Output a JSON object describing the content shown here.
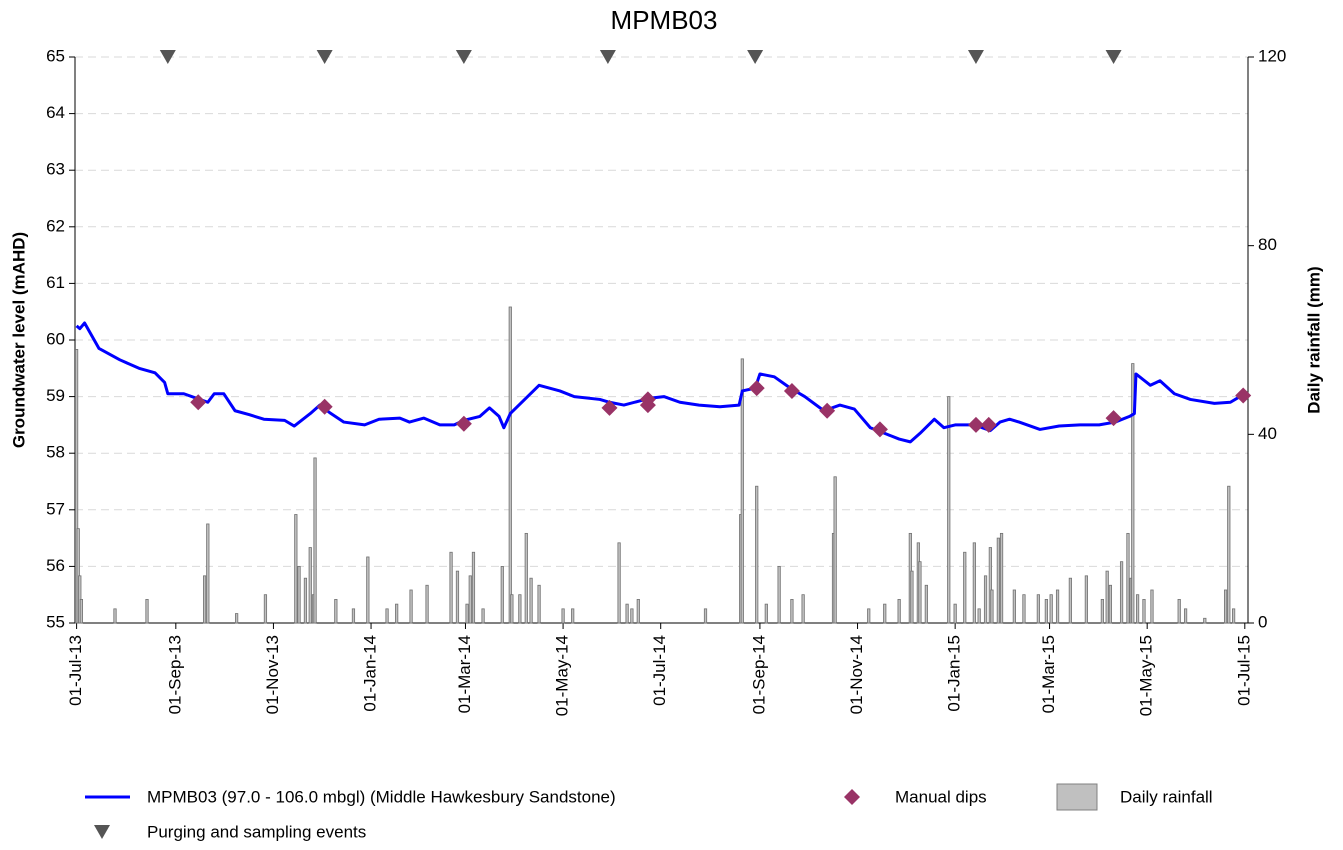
{
  "chart_data": {
    "type": "line",
    "title": "MPMB03",
    "ylabel": "Groundwater level (mAHD)",
    "y2label": "Daily rainfall (mm)",
    "xlim": [
      "2013-06-30",
      "2015-07-03"
    ],
    "xticks": [
      {
        "value": "2013-07-01",
        "label": "01-Jul-13"
      },
      {
        "value": "2013-09-01",
        "label": "01-Sep-13"
      },
      {
        "value": "2013-11-01",
        "label": "01-Nov-13"
      },
      {
        "value": "2014-01-01",
        "label": "01-Jan-14"
      },
      {
        "value": "2014-03-01",
        "label": "01-Mar-14"
      },
      {
        "value": "2014-05-01",
        "label": "01-May-14"
      },
      {
        "value": "2014-07-01",
        "label": "01-Jul-14"
      },
      {
        "value": "2014-09-01",
        "label": "01-Sep-14"
      },
      {
        "value": "2014-11-01",
        "label": "01-Nov-14"
      },
      {
        "value": "2015-01-01",
        "label": "01-Jan-15"
      },
      {
        "value": "2015-03-01",
        "label": "01-Mar-15"
      },
      {
        "value": "2015-05-01",
        "label": "01-May-15"
      },
      {
        "value": "2015-07-01",
        "label": "01-Jul-15"
      }
    ],
    "ylim": [
      55,
      65
    ],
    "yticks": [
      55,
      56,
      57,
      58,
      59,
      60,
      61,
      62,
      63,
      64,
      65
    ],
    "y2lim": [
      0,
      120
    ],
    "y2ticks": [
      0,
      40,
      80,
      120
    ],
    "grid": true,
    "legend": "bottom",
    "series": [
      {
        "name": "MPMB03 (97.0 - 106.0 mbgl) (Middle Hawkesbury Sandstone)",
        "type": "line",
        "color": "#0000ff",
        "x": [
          "2013-07-01",
          "2013-07-03",
          "2013-07-06",
          "2013-07-15",
          "2013-07-28",
          "2013-08-09",
          "2013-08-19",
          "2013-08-25",
          "2013-08-27",
          "2013-09-06",
          "2013-09-16",
          "2013-09-21",
          "2013-09-25",
          "2013-10-01",
          "2013-10-08",
          "2013-10-17",
          "2013-10-26",
          "2013-11-08",
          "2013-11-14",
          "2013-11-24",
          "2013-11-30",
          "2013-12-06",
          "2013-12-15",
          "2013-12-28",
          "2014-01-06",
          "2014-01-19",
          "2014-01-25",
          "2014-02-03",
          "2014-02-13",
          "2014-02-22",
          "2014-02-28",
          "2014-03-10",
          "2014-03-16",
          "2014-03-22",
          "2014-03-25",
          "2014-03-29",
          "2014-04-07",
          "2014-04-16",
          "2014-04-29",
          "2014-05-08",
          "2014-05-24",
          "2014-05-30",
          "2014-06-08",
          "2014-06-24",
          "2014-07-03",
          "2014-07-13",
          "2014-07-25",
          "2014-08-07",
          "2014-08-19",
          "2014-08-21",
          "2014-08-29",
          "2014-09-01",
          "2014-09-10",
          "2014-09-20",
          "2014-09-29",
          "2014-10-11",
          "2014-10-21",
          "2014-10-30",
          "2014-11-09",
          "2014-11-18",
          "2014-11-27",
          "2014-12-04",
          "2014-12-10",
          "2014-12-19",
          "2014-12-25",
          "2015-01-01",
          "2015-01-13",
          "2015-01-23",
          "2015-01-29",
          "2015-02-04",
          "2015-02-10",
          "2015-02-23",
          "2015-03-07",
          "2015-03-20",
          "2015-04-01",
          "2015-04-11",
          "2015-04-20",
          "2015-04-23",
          "2015-04-24",
          "2015-05-03",
          "2015-05-09",
          "2015-05-18",
          "2015-05-28",
          "2015-06-12",
          "2015-06-22",
          "2015-06-28",
          "2015-07-01"
        ],
        "values": [
          60.25,
          60.2,
          60.3,
          59.85,
          59.65,
          59.5,
          59.42,
          59.25,
          59.05,
          59.05,
          58.95,
          58.9,
          59.05,
          59.05,
          58.75,
          58.68,
          58.6,
          58.58,
          58.48,
          58.7,
          58.85,
          58.72,
          58.55,
          58.5,
          58.6,
          58.62,
          58.55,
          58.62,
          58.5,
          58.5,
          58.58,
          58.65,
          58.8,
          58.65,
          58.45,
          58.7,
          58.95,
          59.2,
          59.1,
          59.0,
          58.95,
          58.9,
          58.85,
          58.97,
          59.0,
          58.9,
          58.85,
          58.82,
          58.85,
          59.1,
          59.15,
          59.4,
          59.35,
          59.15,
          59.0,
          58.75,
          58.85,
          58.78,
          58.45,
          58.35,
          58.25,
          58.2,
          58.35,
          58.6,
          58.45,
          58.5,
          58.5,
          58.4,
          58.55,
          58.6,
          58.55,
          58.42,
          58.48,
          58.5,
          58.5,
          58.55,
          58.65,
          58.7,
          59.4,
          59.2,
          59.28,
          59.05,
          58.95,
          58.88,
          58.9,
          59.0,
          59.0
        ]
      },
      {
        "name": "Manual dips",
        "type": "scatter",
        "marker": "diamond",
        "color": "#993366",
        "x": [
          "2013-09-15",
          "2013-12-03",
          "2014-02-28",
          "2014-05-30",
          "2014-06-23",
          "2014-06-23",
          "2014-08-30",
          "2014-09-21",
          "2014-10-13",
          "2014-11-15",
          "2015-01-14",
          "2015-01-22",
          "2015-04-10",
          "2015-06-30"
        ],
        "values": [
          58.9,
          58.82,
          58.52,
          58.8,
          58.95,
          58.85,
          59.15,
          59.1,
          58.75,
          58.42,
          58.5,
          58.5,
          58.62,
          59.02
        ]
      },
      {
        "name": "Daily rainfall",
        "type": "bar",
        "axis": "y2",
        "color": "#c0c0c0",
        "x": [
          "2013-07-01",
          "2013-07-02",
          "2013-07-03",
          "2013-07-04",
          "2013-07-25",
          "2013-08-14",
          "2013-09-19",
          "2013-09-21",
          "2013-10-09",
          "2013-10-27",
          "2013-11-15",
          "2013-11-17",
          "2013-11-21",
          "2013-11-24",
          "2013-11-26",
          "2013-11-27",
          "2013-12-10",
          "2013-12-21",
          "2013-12-30",
          "2014-01-11",
          "2014-01-17",
          "2014-01-26",
          "2014-02-05",
          "2014-02-20",
          "2014-02-24",
          "2014-03-02",
          "2014-03-04",
          "2014-03-06",
          "2014-03-12",
          "2014-03-24",
          "2014-03-29",
          "2014-03-30",
          "2014-04-04",
          "2014-04-08",
          "2014-04-11",
          "2014-04-16",
          "2014-05-01",
          "2014-05-07",
          "2014-06-05",
          "2014-06-10",
          "2014-06-13",
          "2014-06-17",
          "2014-07-29",
          "2014-08-20",
          "2014-08-21",
          "2014-08-30",
          "2014-09-05",
          "2014-09-13",
          "2014-09-21",
          "2014-09-28",
          "2014-10-17",
          "2014-10-18",
          "2014-11-08",
          "2014-11-18",
          "2014-11-27",
          "2014-12-04",
          "2014-12-05",
          "2014-12-09",
          "2014-12-10",
          "2014-12-14",
          "2014-12-28",
          "2015-01-01",
          "2015-01-07",
          "2015-01-13",
          "2015-01-16",
          "2015-01-20",
          "2015-01-23",
          "2015-01-24",
          "2015-01-28",
          "2015-01-30",
          "2015-02-07",
          "2015-02-13",
          "2015-02-22",
          "2015-02-27",
          "2015-03-02",
          "2015-03-06",
          "2015-03-14",
          "2015-03-24",
          "2015-04-03",
          "2015-04-06",
          "2015-04-08",
          "2015-04-15",
          "2015-04-19",
          "2015-04-21",
          "2015-04-22",
          "2015-04-25",
          "2015-04-29",
          "2015-05-04",
          "2015-05-21",
          "2015-05-25",
          "2015-06-06",
          "2015-06-19",
          "2015-06-21",
          "2015-06-24"
        ],
        "values": [
          58,
          20,
          10,
          5,
          3,
          5,
          10,
          21,
          2,
          6,
          23,
          12,
          9.5,
          16,
          6,
          35,
          5,
          3,
          14,
          3,
          4,
          7,
          8,
          15,
          11,
          4,
          10,
          15,
          3,
          12,
          67,
          6,
          6,
          19,
          9.5,
          8,
          3,
          3,
          17,
          4,
          3,
          5,
          3,
          23,
          56,
          29,
          4,
          12,
          5,
          6,
          19,
          31,
          3,
          4,
          5,
          19,
          11,
          17,
          13,
          8,
          48,
          4,
          15,
          17,
          3,
          10,
          16,
          7,
          18,
          19,
          7,
          6,
          6,
          5,
          6,
          7,
          9.5,
          10,
          5,
          11,
          8,
          13,
          19,
          9.5,
          55,
          6,
          5,
          7,
          5,
          3,
          1,
          7,
          29,
          3
        ]
      },
      {
        "name": "Purging and sampling events",
        "type": "event",
        "marker": "triangle-down",
        "color": "#555555",
        "x": [
          "2013-08-27",
          "2013-12-03",
          "2014-02-28",
          "2014-05-29",
          "2014-08-29",
          "2015-01-14",
          "2015-04-10"
        ]
      }
    ]
  }
}
